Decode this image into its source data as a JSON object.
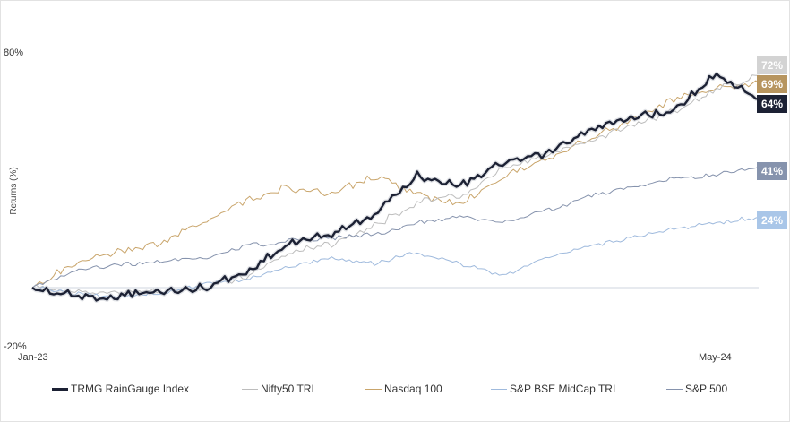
{
  "chart_data": {
    "type": "line",
    "title": "",
    "ylabel": "Returns (%)",
    "ylim": [
      -20,
      80
    ],
    "y_tick_labels": [
      "80%",
      "-20%"
    ],
    "x_tick_labels": [
      "Jan-23",
      "May-24"
    ],
    "x_range": [
      "Jan-23",
      "Jun-24"
    ],
    "legend_position": "bottom",
    "series": [
      {
        "name": "TRMG RainGauge Index",
        "color": "#1c2134",
        "end_label": "64%",
        "points": [
          [
            "Jan-23",
            0
          ],
          [
            "Feb-23",
            -3
          ],
          [
            "Mar-23",
            -3
          ],
          [
            "Apr-23",
            -1
          ],
          [
            "May-23",
            0
          ],
          [
            "Jun-23",
            5
          ],
          [
            "Jul-23",
            15
          ],
          [
            "Aug-23",
            18
          ],
          [
            "Sep-23",
            25
          ],
          [
            "Oct-23",
            38
          ],
          [
            "Nov-23",
            35
          ],
          [
            "Dec-23",
            42
          ],
          [
            "Jan-24",
            45
          ],
          [
            "Feb-24",
            53
          ],
          [
            "Mar-24",
            58
          ],
          [
            "Apr-24",
            60
          ],
          [
            "May-24",
            73
          ],
          [
            "Jun-24",
            64
          ]
        ]
      },
      {
        "name": "Nifty50 TRI",
        "color": "#bdbdbd",
        "end_label": "72%",
        "points": [
          [
            "Jan-23",
            0
          ],
          [
            "Feb-23",
            -1
          ],
          [
            "Mar-23",
            -2
          ],
          [
            "Apr-23",
            -1
          ],
          [
            "May-23",
            0
          ],
          [
            "Jun-23",
            4
          ],
          [
            "Jul-23",
            12
          ],
          [
            "Aug-23",
            15
          ],
          [
            "Sep-23",
            21
          ],
          [
            "Oct-23",
            29
          ],
          [
            "Nov-23",
            31
          ],
          [
            "Dec-23",
            40
          ],
          [
            "Jan-24",
            45
          ],
          [
            "Feb-24",
            50
          ],
          [
            "Mar-24",
            55
          ],
          [
            "Apr-24",
            60
          ],
          [
            "May-24",
            67
          ],
          [
            "Jun-24",
            72
          ]
        ]
      },
      {
        "name": "Nasdaq 100",
        "color": "#c9a56b",
        "end_label": "69%",
        "points": [
          [
            "Jan-23",
            0
          ],
          [
            "Feb-23",
            8
          ],
          [
            "Mar-23",
            12
          ],
          [
            "Apr-23",
            15
          ],
          [
            "May-23",
            22
          ],
          [
            "Jun-23",
            30
          ],
          [
            "Jul-23",
            34
          ],
          [
            "Aug-23",
            32
          ],
          [
            "Sep-23",
            38
          ],
          [
            "Oct-23",
            32
          ],
          [
            "Nov-23",
            28
          ],
          [
            "Dec-23",
            38
          ],
          [
            "Jan-24",
            44
          ],
          [
            "Feb-24",
            50
          ],
          [
            "Mar-24",
            57
          ],
          [
            "Apr-24",
            64
          ],
          [
            "May-24",
            68
          ],
          [
            "Jun-24",
            69
          ]
        ]
      },
      {
        "name": "S&P BSE MidCap TRI",
        "color": "#9fbadd",
        "end_label": "24%",
        "points": [
          [
            "Jan-23",
            0
          ],
          [
            "Feb-23",
            -2
          ],
          [
            "Mar-23",
            -3
          ],
          [
            "Apr-23",
            -2
          ],
          [
            "May-23",
            1
          ],
          [
            "Jun-23",
            3
          ],
          [
            "Jul-23",
            7
          ],
          [
            "Aug-23",
            10
          ],
          [
            "Sep-23",
            8
          ],
          [
            "Oct-23",
            12
          ],
          [
            "Nov-23",
            8
          ],
          [
            "Dec-23",
            4
          ],
          [
            "Jan-24",
            10
          ],
          [
            "Feb-24",
            14
          ],
          [
            "Mar-24",
            17
          ],
          [
            "Apr-24",
            20
          ],
          [
            "May-24",
            22
          ],
          [
            "Jun-24",
            24
          ]
        ]
      },
      {
        "name": "S&P 500",
        "color": "#8693ad",
        "end_label": "41%",
        "points": [
          [
            "Jan-23",
            0
          ],
          [
            "Feb-23",
            6
          ],
          [
            "Mar-23",
            8
          ],
          [
            "Apr-23",
            9
          ],
          [
            "May-23",
            10
          ],
          [
            "Jun-23",
            14
          ],
          [
            "Jul-23",
            16
          ],
          [
            "Aug-23",
            17
          ],
          [
            "Sep-23",
            18
          ],
          [
            "Oct-23",
            22
          ],
          [
            "Nov-23",
            24
          ],
          [
            "Dec-23",
            22
          ],
          [
            "Jan-24",
            26
          ],
          [
            "Feb-24",
            31
          ],
          [
            "Mar-24",
            34
          ],
          [
            "Apr-24",
            37
          ],
          [
            "May-24",
            38
          ],
          [
            "Jun-24",
            41
          ]
        ]
      }
    ]
  }
}
